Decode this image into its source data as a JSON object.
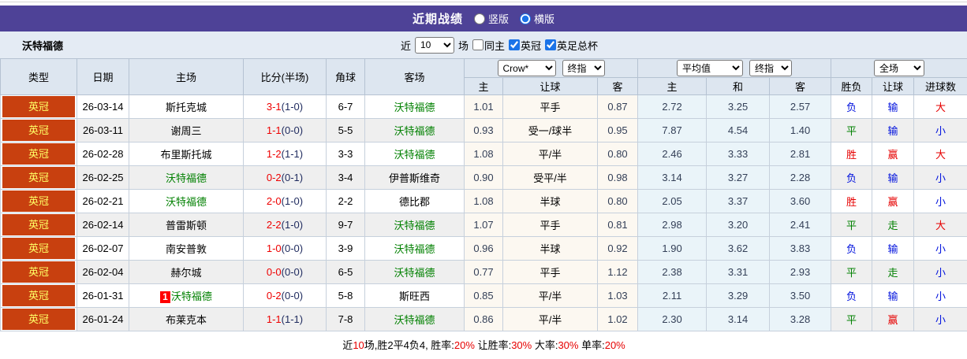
{
  "colors": {
    "purple": "#4e4297",
    "league_bg": "#c8400f",
    "league_text": "#ffff66",
    "self_green": "#008000",
    "score_red": "#ee0000",
    "half_navy": "#1e2a5e",
    "odds_text": "#333f57",
    "red": "#e60000",
    "green": "#008000",
    "blue": "#0011dd",
    "badge_red": "#ff0000",
    "footer_red": "#e60000"
  },
  "title_bar": {
    "title": "近期战绩",
    "layout_radios": [
      {
        "label": "竖版",
        "checked": false
      },
      {
        "label": "横版",
        "checked": true
      }
    ]
  },
  "filter_bar": {
    "team": "沃特福德",
    "near_label": "近",
    "count_value": "10",
    "unit_label": "场",
    "checkboxes": [
      {
        "label": "同主",
        "checked": false
      },
      {
        "label": "英冠",
        "checked": true
      },
      {
        "label": "英足总杯",
        "checked": true
      }
    ]
  },
  "table": {
    "headers": {
      "type": "类型",
      "date": "日期",
      "home": "主场",
      "score": "比分(半场)",
      "corner": "角球",
      "away": "客场",
      "bookmaker": "Crow*",
      "final1": "终指",
      "avg": "平均值",
      "final2": "终指",
      "fulltime": "全场",
      "sub": [
        "主",
        "让球",
        "客",
        "主",
        "和",
        "客",
        "胜负",
        "让球",
        "进球数"
      ]
    },
    "rows": [
      {
        "league": "英冠",
        "date": "26-03-14",
        "home": "斯托克城",
        "home_self": false,
        "badge": "",
        "score": "3-1",
        "half": "(1-0)",
        "corner": "6-7",
        "away": "沃特福德",
        "away_self": true,
        "crow": [
          "1.01",
          "平手",
          "0.87"
        ],
        "avg": [
          "2.72",
          "3.25",
          "2.57"
        ],
        "res": [
          "负",
          "blue"
        ],
        "hres": [
          "输",
          "blue"
        ],
        "gres": [
          "大",
          "red"
        ]
      },
      {
        "league": "英冠",
        "date": "26-03-11",
        "home": "谢周三",
        "home_self": false,
        "badge": "",
        "score": "1-1",
        "half": "(0-0)",
        "corner": "5-5",
        "away": "沃特福德",
        "away_self": true,
        "crow": [
          "0.93",
          "受一/球半",
          "0.95"
        ],
        "avg": [
          "7.87",
          "4.54",
          "1.40"
        ],
        "res": [
          "平",
          "green"
        ],
        "hres": [
          "输",
          "blue"
        ],
        "gres": [
          "小",
          "blue"
        ]
      },
      {
        "league": "英冠",
        "date": "26-02-28",
        "home": "布里斯托城",
        "home_self": false,
        "badge": "",
        "score": "1-2",
        "half": "(1-1)",
        "corner": "3-3",
        "away": "沃特福德",
        "away_self": true,
        "crow": [
          "1.08",
          "平/半",
          "0.80"
        ],
        "avg": [
          "2.46",
          "3.33",
          "2.81"
        ],
        "res": [
          "胜",
          "red"
        ],
        "hres": [
          "赢",
          "red"
        ],
        "gres": [
          "大",
          "red"
        ]
      },
      {
        "league": "英冠",
        "date": "26-02-25",
        "home": "沃特福德",
        "home_self": true,
        "badge": "",
        "score": "0-2",
        "half": "(0-1)",
        "corner": "3-4",
        "away": "伊普斯维奇",
        "away_self": false,
        "crow": [
          "0.90",
          "受平/半",
          "0.98"
        ],
        "avg": [
          "3.14",
          "3.27",
          "2.28"
        ],
        "res": [
          "负",
          "blue"
        ],
        "hres": [
          "输",
          "blue"
        ],
        "gres": [
          "小",
          "blue"
        ]
      },
      {
        "league": "英冠",
        "date": "26-02-21",
        "home": "沃特福德",
        "home_self": true,
        "badge": "",
        "score": "2-0",
        "half": "(1-0)",
        "corner": "2-2",
        "away": "德比郡",
        "away_self": false,
        "crow": [
          "1.08",
          "半球",
          "0.80"
        ],
        "avg": [
          "2.05",
          "3.37",
          "3.60"
        ],
        "res": [
          "胜",
          "red"
        ],
        "hres": [
          "赢",
          "red"
        ],
        "gres": [
          "小",
          "blue"
        ]
      },
      {
        "league": "英冠",
        "date": "26-02-14",
        "home": "普雷斯顿",
        "home_self": false,
        "badge": "",
        "score": "2-2",
        "half": "(1-0)",
        "corner": "9-7",
        "away": "沃特福德",
        "away_self": true,
        "crow": [
          "1.07",
          "平手",
          "0.81"
        ],
        "avg": [
          "2.98",
          "3.20",
          "2.41"
        ],
        "res": [
          "平",
          "green"
        ],
        "hres": [
          "走",
          "green"
        ],
        "gres": [
          "大",
          "red"
        ]
      },
      {
        "league": "英冠",
        "date": "26-02-07",
        "home": "南安普敦",
        "home_self": false,
        "badge": "",
        "score": "1-0",
        "half": "(0-0)",
        "corner": "3-9",
        "away": "沃特福德",
        "away_self": true,
        "crow": [
          "0.96",
          "半球",
          "0.92"
        ],
        "avg": [
          "1.90",
          "3.62",
          "3.83"
        ],
        "res": [
          "负",
          "blue"
        ],
        "hres": [
          "输",
          "blue"
        ],
        "gres": [
          "小",
          "blue"
        ]
      },
      {
        "league": "英冠",
        "date": "26-02-04",
        "home": "赫尔城",
        "home_self": false,
        "badge": "",
        "score": "0-0",
        "half": "(0-0)",
        "corner": "6-5",
        "away": "沃特福德",
        "away_self": true,
        "crow": [
          "0.77",
          "平手",
          "1.12"
        ],
        "avg": [
          "2.38",
          "3.31",
          "2.93"
        ],
        "res": [
          "平",
          "green"
        ],
        "hres": [
          "走",
          "green"
        ],
        "gres": [
          "小",
          "blue"
        ]
      },
      {
        "league": "英冠",
        "date": "26-01-31",
        "home": "沃特福德",
        "home_self": true,
        "badge": "1",
        "score": "0-2",
        "half": "(0-0)",
        "corner": "5-8",
        "away": "斯旺西",
        "away_self": false,
        "crow": [
          "0.85",
          "平/半",
          "1.03"
        ],
        "avg": [
          "2.11",
          "3.29",
          "3.50"
        ],
        "res": [
          "负",
          "blue"
        ],
        "hres": [
          "输",
          "blue"
        ],
        "gres": [
          "小",
          "blue"
        ]
      },
      {
        "league": "英冠",
        "date": "26-01-24",
        "home": "布莱克本",
        "home_self": false,
        "badge": "",
        "score": "1-1",
        "half": "(1-1)",
        "corner": "7-8",
        "away": "沃特福德",
        "away_self": true,
        "crow": [
          "0.86",
          "平/半",
          "1.02"
        ],
        "avg": [
          "2.30",
          "3.14",
          "3.28"
        ],
        "res": [
          "平",
          "green"
        ],
        "hres": [
          "赢",
          "red"
        ],
        "gres": [
          "小",
          "blue"
        ]
      }
    ]
  },
  "footer": {
    "segments": [
      {
        "t": "近",
        "c": "k"
      },
      {
        "t": "10",
        "c": "r"
      },
      {
        "t": "场,胜2平4负4, 胜率:",
        "c": "k"
      },
      {
        "t": "20%",
        "c": "r"
      },
      {
        "t": " 让胜率:",
        "c": "k"
      },
      {
        "t": "30%",
        "c": "r"
      },
      {
        "t": " 大率:",
        "c": "k"
      },
      {
        "t": "30%",
        "c": "r"
      },
      {
        "t": " 单率:",
        "c": "k"
      },
      {
        "t": "20%",
        "c": "r"
      }
    ]
  }
}
